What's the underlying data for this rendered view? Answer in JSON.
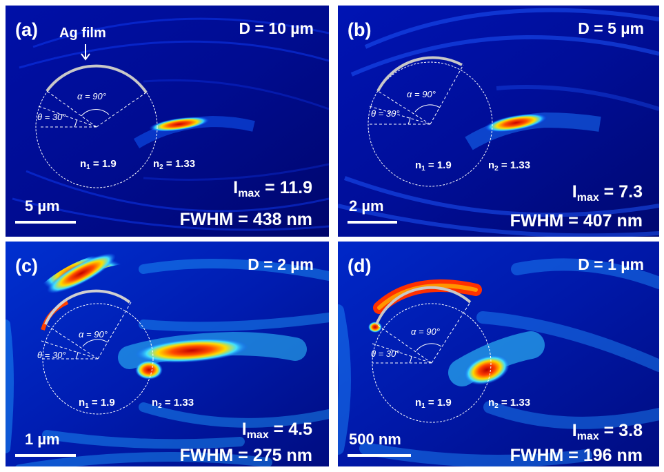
{
  "panels": [
    {
      "tag": "(a)",
      "d_label": "D = 10 µm",
      "imax_value": "11.9",
      "fwhm": "FWHM = 438 nm",
      "scale": "5 µm",
      "n1": "1.9",
      "n2": "1.33",
      "alpha": "α = 90°",
      "theta": "θ = 30°",
      "ag_label": "Ag film"
    },
    {
      "tag": "(b)",
      "d_label": "D = 5 µm",
      "imax_value": "7.3",
      "fwhm": "FWHM = 407 nm",
      "scale": "2 µm",
      "n1": "1.9",
      "n2": "1.33",
      "alpha": "α = 90°",
      "theta": "θ = 30°"
    },
    {
      "tag": "(c)",
      "d_label": "D = 2 µm",
      "imax_value": "4.5",
      "fwhm": "FWHM = 275 nm",
      "scale": "1 µm",
      "n1": "1.9",
      "n2": "1.33",
      "alpha": "α = 90°",
      "theta": "θ = 30°"
    },
    {
      "tag": "(d)",
      "d_label": "D = 1 µm",
      "imax_value": "3.8",
      "fwhm": "FWHM = 196 nm",
      "scale": "500 nm",
      "n1": "1.9",
      "n2": "1.33",
      "alpha": "α = 90°",
      "theta": "θ = 30°"
    }
  ],
  "labels": {
    "imax_prefix": "I",
    "imax_sub": "max",
    "imax_eq": " = ",
    "n1_prefix": "n",
    "n1_sub": "1",
    "n2_prefix": "n",
    "n2_sub": "2",
    "n_eq": " = "
  },
  "colors": {
    "background": "#00007a",
    "field_low": "#0028ff",
    "field_mid": "#00c8ff",
    "field_hot": "#ffff00",
    "field_peak": "#d40000",
    "film": "#c8c8c8",
    "overlay": "#ffffff"
  }
}
